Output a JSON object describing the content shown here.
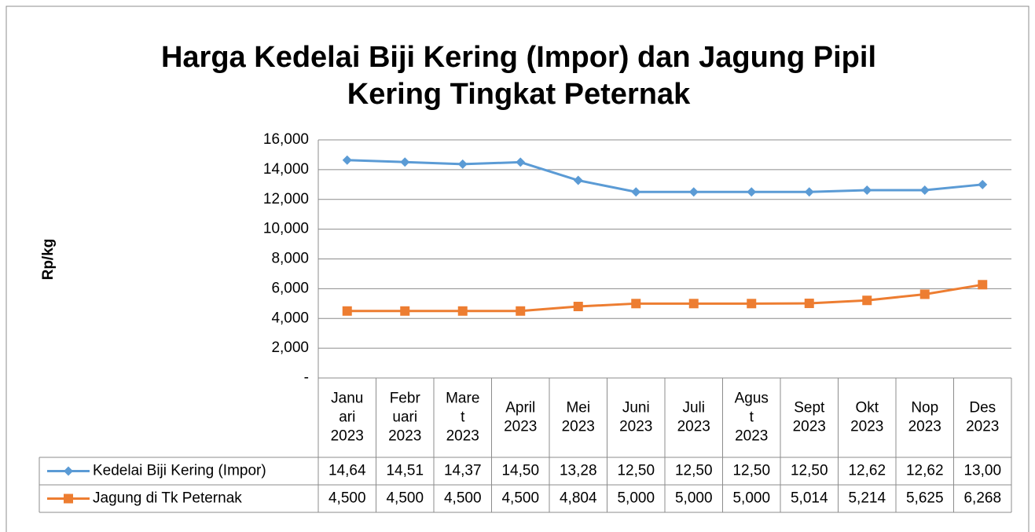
{
  "chart_data": {
    "type": "line",
    "title": [
      "Harga Kedelai Biji Kering (Impor) dan Jagung Pipil",
      "Kering Tingkat Peternak"
    ],
    "y_label": "Rp/kg",
    "categories": [
      [
        "Janu",
        "ari",
        "2023"
      ],
      [
        "Febr",
        "uari",
        "2023"
      ],
      [
        "Mare",
        "t",
        "2023"
      ],
      [
        "April",
        "2023"
      ],
      [
        "Mei",
        "2023"
      ],
      [
        "Juni",
        "2023"
      ],
      [
        "Juli",
        "2023"
      ],
      [
        "Agus",
        "t",
        "2023"
      ],
      [
        "Sept",
        "2023"
      ],
      [
        "Okt",
        "2023"
      ],
      [
        "Nop",
        "2023"
      ],
      [
        "Des",
        "2023"
      ]
    ],
    "series": [
      {
        "name": "Kedelai Biji Kering (Impor)",
        "color": "#5b9bd5",
        "marker": "diamond",
        "values": [
          14640,
          14510,
          14370,
          14500,
          13280,
          12500,
          12500,
          12500,
          12500,
          12620,
          12620,
          13000
        ],
        "value_labels": [
          "14,64",
          "14,51",
          "14,37",
          "14,50",
          "13,28",
          "12,50",
          "12,50",
          "12,50",
          "12,50",
          "12,62",
          "12,62",
          "13,00"
        ]
      },
      {
        "name": "Jagung di Tk Peternak",
        "color": "#ed7d31",
        "marker": "square",
        "values": [
          4500,
          4500,
          4500,
          4500,
          4804,
          5000,
          5000,
          5000,
          5014,
          5214,
          5625,
          6268
        ],
        "value_labels": [
          "4,500",
          "4,500",
          "4,500",
          "4,500",
          "4,804",
          "5,000",
          "5,000",
          "5,000",
          "5,014",
          "5,214",
          "5,625",
          "6,268"
        ]
      }
    ],
    "ylim": [
      0,
      16000
    ],
    "yticks": [
      {
        "value": 0,
        "label": "-"
      },
      {
        "value": 2000,
        "label": "2,000"
      },
      {
        "value": 4000,
        "label": "4,000"
      },
      {
        "value": 6000,
        "label": "6,000"
      },
      {
        "value": 8000,
        "label": "8,000"
      },
      {
        "value": 10000,
        "label": "10,000"
      },
      {
        "value": 12000,
        "label": "12,000"
      },
      {
        "value": 14000,
        "label": "14,000"
      },
      {
        "value": 16000,
        "label": "16,000"
      }
    ],
    "grid": true
  }
}
